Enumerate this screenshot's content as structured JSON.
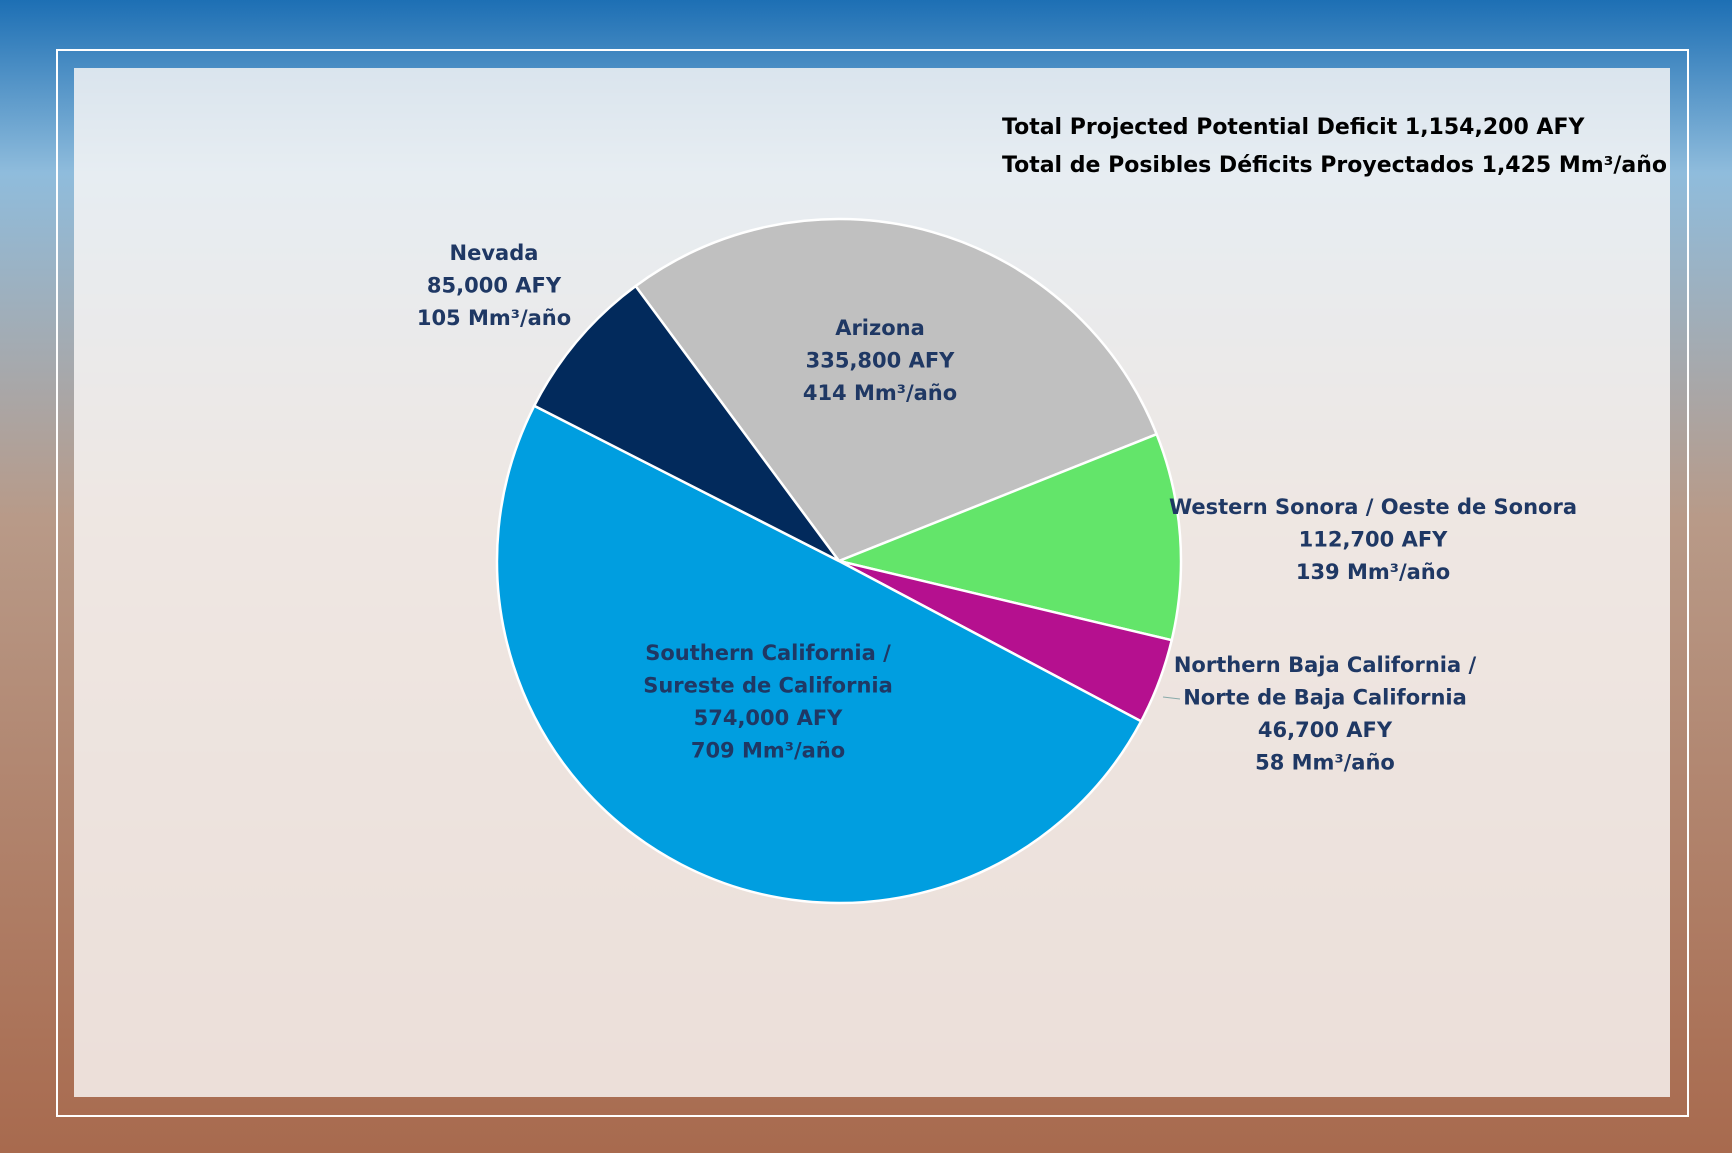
{
  "chart_data": {
    "type": "pie",
    "title": [
      "Total Projected Potential Deficit 1,154,200 AFY",
      "Total de Posibles Déficits Proyectados 1,425 Mm³/año"
    ],
    "categories": [
      [
        "Arizona"
      ],
      [
        "Western Sonora / Oeste de Sonora"
      ],
      [
        "Northern Baja California /",
        "Norte de Baja California"
      ],
      [
        "Southern California /",
        "Sureste de California"
      ],
      [
        "Nevada"
      ]
    ],
    "values": [
      335800,
      112700,
      46700,
      574000,
      85000
    ],
    "value_labels": [
      "335,800 AFY",
      "112,700 AFY",
      "46,700 AFY",
      "574,000 AFY",
      "85,000 AFY"
    ],
    "metric_labels": [
      "414 Mm³/año",
      "139 Mm³/año",
      "58 Mm³/año",
      "709 Mm³/año",
      "105 Mm³/año"
    ],
    "colors": [
      "#c0c0c0",
      "#63e56a",
      "#b5108f",
      "#009ee0",
      "#022a5c"
    ]
  }
}
